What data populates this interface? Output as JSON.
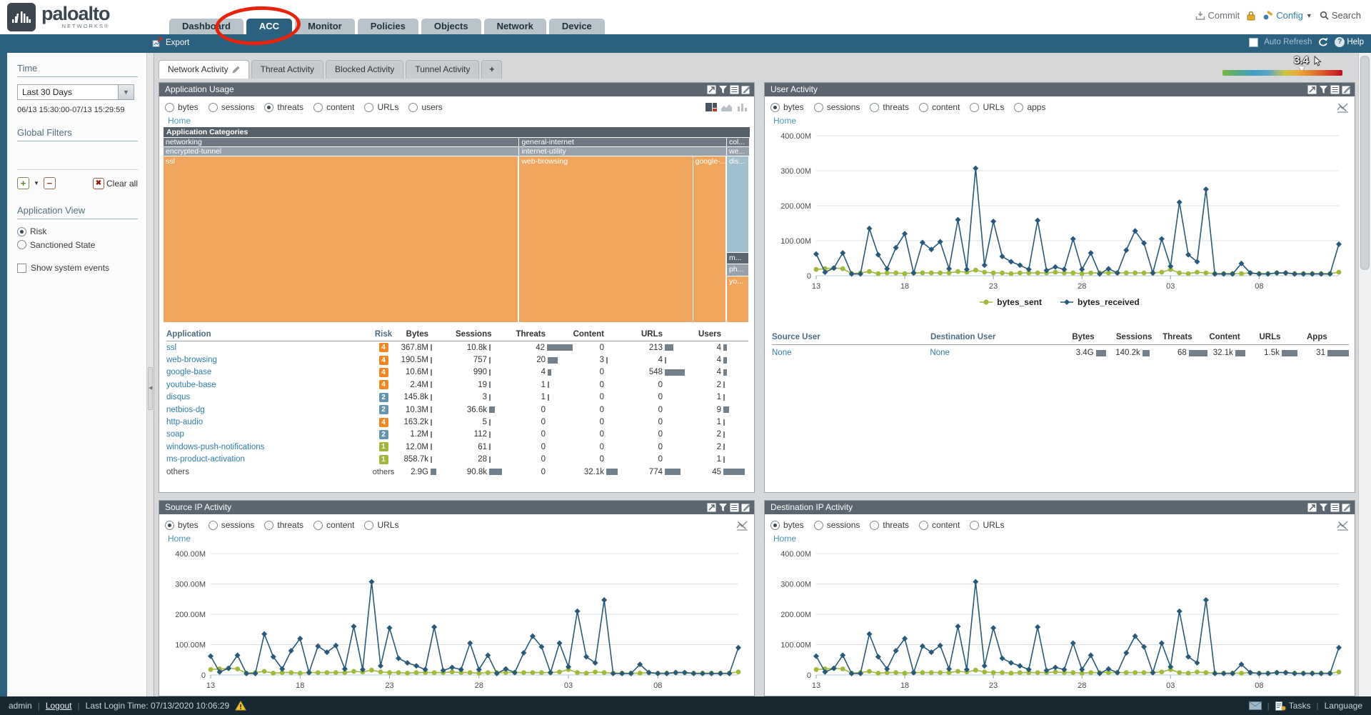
{
  "header": {
    "brand": "paloalto",
    "brand_sub": "NETWORKS®",
    "nav_tabs": [
      {
        "label": "Dashboard",
        "active": false
      },
      {
        "label": "ACC",
        "active": true
      },
      {
        "label": "Monitor",
        "active": false
      },
      {
        "label": "Policies",
        "active": false
      },
      {
        "label": "Objects",
        "active": false
      },
      {
        "label": "Network",
        "active": false
      },
      {
        "label": "Device",
        "active": false
      }
    ],
    "commit_label": "Commit",
    "config_label": "Config",
    "search_label": "Search"
  },
  "toolbar": {
    "export_label": "Export",
    "auto_refresh_label": "Auto Refresh",
    "help_label": "Help"
  },
  "sidebar": {
    "time_label": "Time",
    "time_dropdown_value": "Last 30 Days",
    "time_range": "06/13 15:30:00-07/13 15:29:59",
    "global_filters_label": "Global Filters",
    "clear_all_label": "Clear all",
    "application_view_label": "Application View",
    "view_options": [
      {
        "label": "Risk",
        "selected": true
      },
      {
        "label": "Sanctioned State",
        "selected": false
      }
    ],
    "show_system_events_label": "Show system events"
  },
  "acc_tabs": [
    {
      "label": "Network Activity",
      "active": true
    },
    {
      "label": "Threat Activity",
      "active": false
    },
    {
      "label": "Blocked Activity",
      "active": false
    },
    {
      "label": "Tunnel Activity",
      "active": false
    },
    {
      "label": "+",
      "active": false
    }
  ],
  "risk_meter": {
    "value": "3.4"
  },
  "panels": {
    "application_usage": {
      "title": "Application Usage",
      "metrics": [
        {
          "label": "bytes",
          "selected": false
        },
        {
          "label": "sessions",
          "selected": false
        },
        {
          "label": "threats",
          "selected": true
        },
        {
          "label": "content",
          "selected": false
        },
        {
          "label": "URLs",
          "selected": false
        },
        {
          "label": "users",
          "selected": false
        }
      ],
      "breadcrumb": "Home",
      "treemap": {
        "header": "Application Categories",
        "groups": [
          {
            "category": "networking",
            "subcategory": "encrypted-tunnel",
            "width_pct": 60.7,
            "vertical": false,
            "blocks": [
              {
                "label": "ssl",
                "color": "risk4",
                "size_pct": 100
              }
            ]
          },
          {
            "category": "general-internet",
            "subcategory": "internet-utility",
            "width_pct": 35.4,
            "vertical": false,
            "blocks": [
              {
                "label": "web-browsing",
                "color": "risk4",
                "size_pct": 84
              },
              {
                "label": "google-...",
                "color": "risk4",
                "size_pct": 16
              }
            ]
          },
          {
            "category": "col...",
            "subcategory": "we...",
            "width_pct": 3.9,
            "vertical": true,
            "blocks": [
              {
                "label": "dis...",
                "color": "risk2",
                "size_pct": 58
              },
              {
                "label": "m...",
                "color": "dark",
                "size_pct": 7
              },
              {
                "label": "ph...",
                "color": "gray",
                "size_pct": 7
              },
              {
                "label": "yo...",
                "color": "risk4",
                "size_pct": 28
              }
            ]
          }
        ]
      },
      "table": {
        "columns": [
          "Application",
          "Risk",
          "Bytes",
          "Sessions",
          "Threats",
          "Content",
          "URLs",
          "Users"
        ],
        "rows": [
          {
            "app": "ssl",
            "risk": "4",
            "cells": [
              {
                "v": "367.8M",
                "bar": 2
              },
              {
                "v": "10.8k",
                "bar": 2
              },
              {
                "v": "42",
                "bar": 36
              },
              {
                "v": "0",
                "bar": 0
              },
              {
                "v": "213",
                "bar": 12
              },
              {
                "v": "4",
                "bar": 5
              }
            ]
          },
          {
            "app": "web-browsing",
            "risk": "4",
            "cells": [
              {
                "v": "190.5M",
                "bar": 2
              },
              {
                "v": "757",
                "bar": 2
              },
              {
                "v": "20",
                "bar": 14
              },
              {
                "v": "3",
                "bar": 2
              },
              {
                "v": "4",
                "bar": 2
              },
              {
                "v": "4",
                "bar": 5
              }
            ]
          },
          {
            "app": "google-base",
            "risk": "4",
            "cells": [
              {
                "v": "10.6M",
                "bar": 2
              },
              {
                "v": "990",
                "bar": 2
              },
              {
                "v": "4",
                "bar": 5
              },
              {
                "v": "0",
                "bar": 0
              },
              {
                "v": "548",
                "bar": 28
              },
              {
                "v": "4",
                "bar": 5
              }
            ]
          },
          {
            "app": "youtube-base",
            "risk": "4",
            "cells": [
              {
                "v": "2.4M",
                "bar": 2
              },
              {
                "v": "19",
                "bar": 2
              },
              {
                "v": "1",
                "bar": 2
              },
              {
                "v": "0",
                "bar": 0
              },
              {
                "v": "0",
                "bar": 0
              },
              {
                "v": "2",
                "bar": 2
              }
            ]
          },
          {
            "app": "disqus",
            "risk": "2",
            "cells": [
              {
                "v": "145.8k",
                "bar": 2
              },
              {
                "v": "3",
                "bar": 2
              },
              {
                "v": "1",
                "bar": 2
              },
              {
                "v": "0",
                "bar": 0
              },
              {
                "v": "0",
                "bar": 0
              },
              {
                "v": "1",
                "bar": 2
              }
            ]
          },
          {
            "app": "netbios-dg",
            "risk": "2",
            "cells": [
              {
                "v": "10.3M",
                "bar": 2
              },
              {
                "v": "36.6k",
                "bar": 8
              },
              {
                "v": "0",
                "bar": 0
              },
              {
                "v": "0",
                "bar": 0
              },
              {
                "v": "0",
                "bar": 0
              },
              {
                "v": "9",
                "bar": 8
              }
            ]
          },
          {
            "app": "http-audio",
            "risk": "4",
            "cells": [
              {
                "v": "163.2k",
                "bar": 2
              },
              {
                "v": "5",
                "bar": 2
              },
              {
                "v": "0",
                "bar": 0
              },
              {
                "v": "0",
                "bar": 0
              },
              {
                "v": "0",
                "bar": 0
              },
              {
                "v": "1",
                "bar": 2
              }
            ]
          },
          {
            "app": "soap",
            "risk": "2",
            "cells": [
              {
                "v": "1.2M",
                "bar": 2
              },
              {
                "v": "112",
                "bar": 2
              },
              {
                "v": "0",
                "bar": 0
              },
              {
                "v": "0",
                "bar": 0
              },
              {
                "v": "0",
                "bar": 0
              },
              {
                "v": "2",
                "bar": 2
              }
            ]
          },
          {
            "app": "windows-push-notifications",
            "risk": "1",
            "cells": [
              {
                "v": "12.0M",
                "bar": 2
              },
              {
                "v": "61",
                "bar": 2
              },
              {
                "v": "0",
                "bar": 0
              },
              {
                "v": "0",
                "bar": 0
              },
              {
                "v": "0",
                "bar": 0
              },
              {
                "v": "2",
                "bar": 2
              }
            ]
          },
          {
            "app": "ms-product-activation",
            "risk": "1",
            "cells": [
              {
                "v": "858.7k",
                "bar": 2
              },
              {
                "v": "28",
                "bar": 2
              },
              {
                "v": "0",
                "bar": 0
              },
              {
                "v": "0",
                "bar": 0
              },
              {
                "v": "0",
                "bar": 0
              },
              {
                "v": "1",
                "bar": 2
              }
            ]
          },
          {
            "app": "others",
            "risk": "others",
            "cells": [
              {
                "v": "2.9G",
                "bar": 8
              },
              {
                "v": "90.8k",
                "bar": 18
              },
              {
                "v": "0",
                "bar": 0
              },
              {
                "v": "32.1k",
                "bar": 16
              },
              {
                "v": "774",
                "bar": 22
              },
              {
                "v": "45",
                "bar": 30
              }
            ]
          }
        ]
      }
    },
    "user_activity": {
      "title": "User Activity",
      "metrics": [
        {
          "label": "bytes",
          "selected": true
        },
        {
          "label": "sessions",
          "selected": false
        },
        {
          "label": "threats",
          "selected": false
        },
        {
          "label": "content",
          "selected": false
        },
        {
          "label": "URLs",
          "selected": false
        },
        {
          "label": "apps",
          "selected": false
        }
      ],
      "breadcrumb": "Home",
      "table": {
        "columns": [
          "Source User",
          "Destination User",
          "Bytes",
          "Sessions",
          "Threats",
          "Content",
          "URLs",
          "Apps"
        ],
        "rows": [
          {
            "source": "None",
            "destination": "None",
            "cells": [
              {
                "v": "3.4G",
                "bar": 14
              },
              {
                "v": "140.2k",
                "bar": 10
              },
              {
                "v": "68",
                "bar": 26
              },
              {
                "v": "32.1k",
                "bar": 14
              },
              {
                "v": "1.5k",
                "bar": 22
              },
              {
                "v": "31",
                "bar": 30
              }
            ]
          }
        ]
      }
    },
    "source_ip_activity": {
      "title": "Source IP Activity",
      "metrics": [
        {
          "label": "bytes",
          "selected": true
        },
        {
          "label": "sessions",
          "selected": false
        },
        {
          "label": "threats",
          "selected": false
        },
        {
          "label": "content",
          "selected": false
        },
        {
          "label": "URLs",
          "selected": false
        }
      ],
      "breadcrumb": "Home"
    },
    "destination_ip_activity": {
      "title": "Destination IP Activity",
      "metrics": [
        {
          "label": "bytes",
          "selected": true
        },
        {
          "label": "sessions",
          "selected": false
        },
        {
          "label": "threats",
          "selected": false
        },
        {
          "label": "content",
          "selected": false
        },
        {
          "label": "URLs",
          "selected": false
        }
      ],
      "breadcrumb": "Home"
    }
  },
  "chart_data": {
    "type": "line",
    "title": "",
    "x_tick_labels": [
      "13",
      "18",
      "23",
      "28",
      "03",
      "08"
    ],
    "x_tick_indices": [
      0,
      10,
      20,
      30,
      40,
      50
    ],
    "y_tick_labels": [
      "0",
      "100.00M",
      "200.00M",
      "300.00M",
      "400.00M"
    ],
    "ylim": [
      0,
      400
    ],
    "y_unit": "M",
    "grid": true,
    "legend_position": "bottom",
    "series": [
      {
        "name": "bytes_sent",
        "color": "#9fb93b",
        "marker": "circle",
        "values": [
          18,
          20,
          22,
          20,
          6,
          8,
          12,
          6,
          8,
          8,
          6,
          8,
          8,
          8,
          8,
          8,
          12,
          10,
          16,
          10,
          8,
          8,
          6,
          8,
          8,
          8,
          8,
          10,
          8,
          8,
          6,
          8,
          8,
          8,
          8,
          8,
          8,
          8,
          8,
          10,
          18,
          8,
          6,
          10,
          8,
          6,
          6,
          6,
          6,
          8,
          6,
          6,
          8,
          8,
          6,
          6,
          6,
          6,
          6,
          10
        ]
      },
      {
        "name": "bytes_received",
        "color": "#28597a",
        "marker": "diamond",
        "values": [
          62,
          10,
          22,
          65,
          5,
          5,
          135,
          60,
          20,
          80,
          120,
          8,
          95,
          75,
          97,
          20,
          160,
          18,
          307,
          30,
          155,
          55,
          40,
          30,
          18,
          158,
          15,
          25,
          18,
          105,
          18,
          65,
          5,
          20,
          8,
          73,
          128,
          93,
          8,
          105,
          27,
          210,
          60,
          40,
          247,
          5,
          5,
          5,
          35,
          8,
          5,
          5,
          8,
          8,
          5,
          5,
          5,
          5,
          5,
          90
        ]
      }
    ]
  },
  "statusbar": {
    "user": "admin",
    "logout_label": "Logout",
    "last_login": "Last Login Time: 07/13/2020 10:06:29",
    "tasks_label": "Tasks",
    "language_label": "Language"
  },
  "colors": {
    "accent_blue": "#2b607f",
    "panel_header": "#5b6670",
    "risk4_orange": "#f0a55e",
    "risk2_blue": "#a2bfcd",
    "risk1_green": "#a0b63c",
    "link": "#2e7cab",
    "annotation_red": "#e8230a"
  }
}
